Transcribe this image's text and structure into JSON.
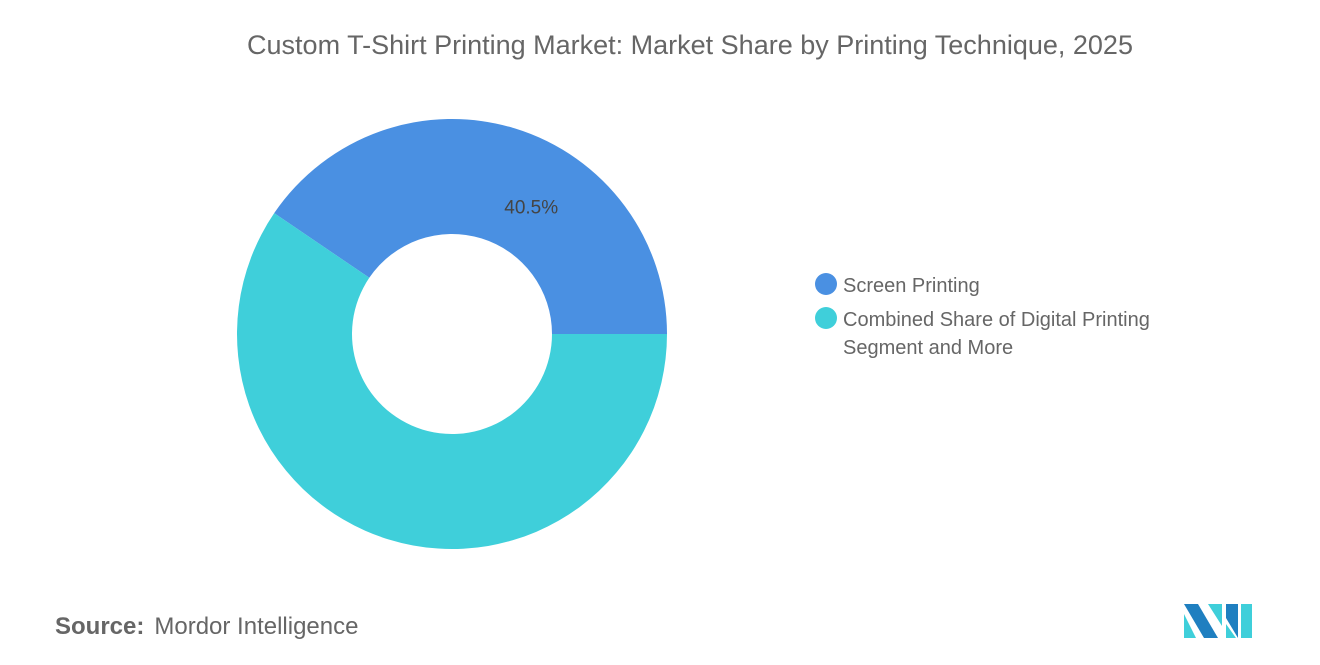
{
  "title": "Custom T-Shirt Printing Market: Market Share by Printing Technique, 2025",
  "chart_data": {
    "type": "pie",
    "donut": true,
    "title": "Custom T-Shirt Printing Market: Market Share by Printing Technique, 2025",
    "slices": [
      {
        "name": "Screen Printing",
        "value": 40.5,
        "label": "40.5%",
        "color": "#4a90e2"
      },
      {
        "name": "Combined Share of Digital Printing Segment and More",
        "value": 59.5,
        "label": "",
        "color": "#3fcfda"
      }
    ],
    "legend_position": "right"
  },
  "source": {
    "label": "Source:",
    "value": "Mordor Intelligence"
  },
  "logo": {
    "name": "mordor-intelligence-logo",
    "colors": [
      "#1f7fc0",
      "#3fcfda"
    ]
  }
}
